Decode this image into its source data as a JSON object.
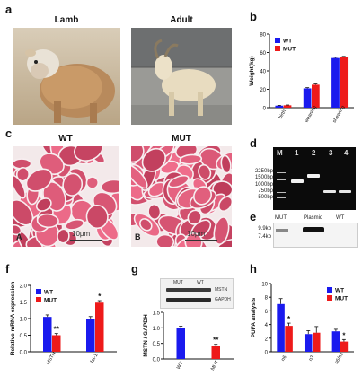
{
  "figure": {
    "panel_labels": {
      "a": "a",
      "b": "b",
      "c": "c",
      "d": "d",
      "e": "e",
      "f": "f",
      "g": "g",
      "h": "h"
    },
    "panel_a": {
      "left_title": "Lamb",
      "right_title": "Adult"
    },
    "panel_c": {
      "left_title": "WT",
      "right_title": "MUT",
      "left_tag": "A",
      "right_tag": "B",
      "scale_left": "10μm",
      "scale_right": "10μm"
    },
    "panel_d": {
      "lane_labels": [
        "M",
        "1",
        "2",
        "3",
        "4"
      ],
      "markers": [
        "2250bp",
        "1500bp",
        "1000bp",
        "750bp",
        "500bp"
      ]
    },
    "panel_e": {
      "lane_labels": [
        "MUT",
        "Plasmid",
        "WT"
      ],
      "markers": [
        "9.9kb",
        "7.4kb"
      ]
    },
    "panel_g": {
      "blot_lane_labels": [
        "MUT",
        "WT"
      ],
      "blot_bands": [
        "MSTN",
        "GAPDH"
      ]
    },
    "colors": {
      "wt": "#1a1aee",
      "mut": "#ee1a1a"
    }
  },
  "chart_data": [
    {
      "panel": "b",
      "type": "bar",
      "categories": [
        "birth",
        "weaning",
        "shearing"
      ],
      "series": [
        {
          "name": "WT",
          "values": [
            2.2,
            21,
            54
          ]
        },
        {
          "name": "MUT",
          "values": [
            2.6,
            25,
            55
          ]
        }
      ],
      "errors": {
        "WT": [
          0.3,
          0.8,
          0.8
        ],
        "MUT": [
          0.3,
          0.8,
          0.8
        ]
      },
      "ylabel": "Weight(kg)",
      "ylim": [
        0,
        80
      ],
      "yticks": [
        0,
        20,
        40,
        60,
        80
      ],
      "legend": "top-left"
    },
    {
      "panel": "f",
      "type": "bar",
      "categories": [
        "MSTN",
        "fat-1"
      ],
      "series": [
        {
          "name": "WT",
          "values": [
            1.05,
            1.0
          ]
        },
        {
          "name": "MUT",
          "values": [
            0.5,
            1.48
          ]
        }
      ],
      "errors": {
        "WT": [
          0.06,
          0.06
        ],
        "MUT": [
          0.05,
          0.06
        ]
      },
      "significance": [
        "**",
        "*"
      ],
      "ylabel": "Relative mRNA expression",
      "ylim": [
        0,
        2.0
      ],
      "yticks": [
        0.0,
        0.5,
        1.0,
        1.5,
        2.0
      ],
      "yticklabels": [
        "0.0",
        "0.5",
        "1.0",
        "1.5",
        "2.0"
      ],
      "legend": "top-left"
    },
    {
      "panel": "g",
      "type": "bar",
      "categories": [
        "WT",
        "MUT"
      ],
      "values": [
        1.0,
        0.42
      ],
      "errors": [
        0.05,
        0.05
      ],
      "significance": [
        "",
        "**"
      ],
      "ylabel": "MSTN / GAPDH",
      "ylim": [
        0,
        1.5
      ],
      "yticks": [
        0.0,
        0.5,
        1.0,
        1.5
      ],
      "yticklabels": [
        "0.0",
        "0.5",
        "1.0",
        "1.5"
      ]
    },
    {
      "panel": "h",
      "type": "bar",
      "categories": [
        "n6",
        "n3",
        "n6/n3"
      ],
      "series": [
        {
          "name": "WT",
          "values": [
            7.0,
            2.6,
            3.0
          ]
        },
        {
          "name": "MUT",
          "values": [
            3.8,
            2.8,
            1.5
          ]
        }
      ],
      "errors": {
        "WT": [
          0.8,
          0.5,
          0.3
        ],
        "MUT": [
          0.4,
          0.9,
          0.3
        ]
      },
      "significance": [
        "*",
        "",
        "*"
      ],
      "ylabel": "PUFA analysis",
      "ylim": [
        0,
        10
      ],
      "yticks": [
        0,
        2,
        4,
        6,
        8,
        10
      ],
      "legend": "top-right"
    }
  ]
}
